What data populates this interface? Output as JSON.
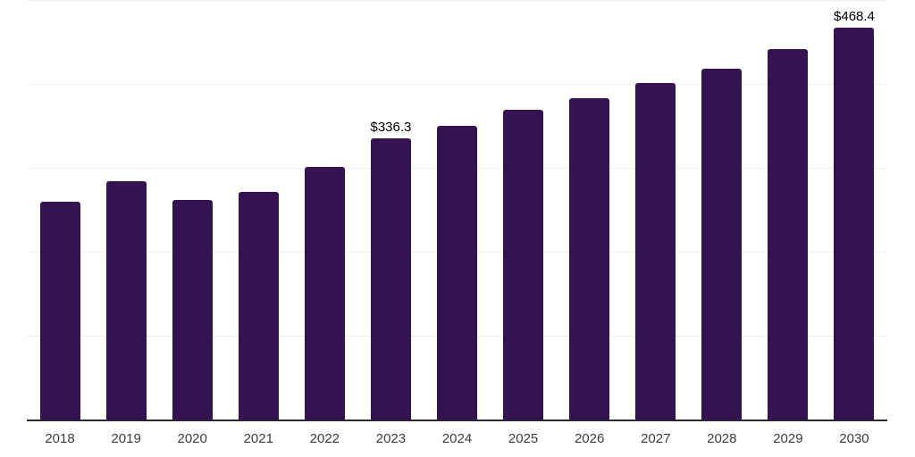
{
  "colors": {
    "background": "#FFFFFF",
    "bar": "#331450",
    "gridline": "#EFEFEF",
    "axis_line": "#2B2B2B",
    "tick_text": "#3C3C3C",
    "data_label_text": "#000000"
  },
  "chart_data": {
    "type": "bar",
    "categories": [
      "2018",
      "2019",
      "2020",
      "2021",
      "2022",
      "2023",
      "2024",
      "2025",
      "2026",
      "2027",
      "2028",
      "2029",
      "2030"
    ],
    "values": [
      260.9,
      285.2,
      262.9,
      272.5,
      302.2,
      336.3,
      351.2,
      370.4,
      384.2,
      402.3,
      419.4,
      442.7,
      468.4
    ],
    "data_labels": {
      "2023": "$336.3",
      "2030": "$468.4"
    },
    "title": "",
    "xlabel": "",
    "ylabel": "",
    "ylim": [
      0,
      500
    ],
    "gridline_values": [
      100,
      200,
      300,
      400,
      500
    ],
    "grid": "horizontal-only",
    "y_axis_labels_visible": false,
    "legend_position": "none"
  }
}
